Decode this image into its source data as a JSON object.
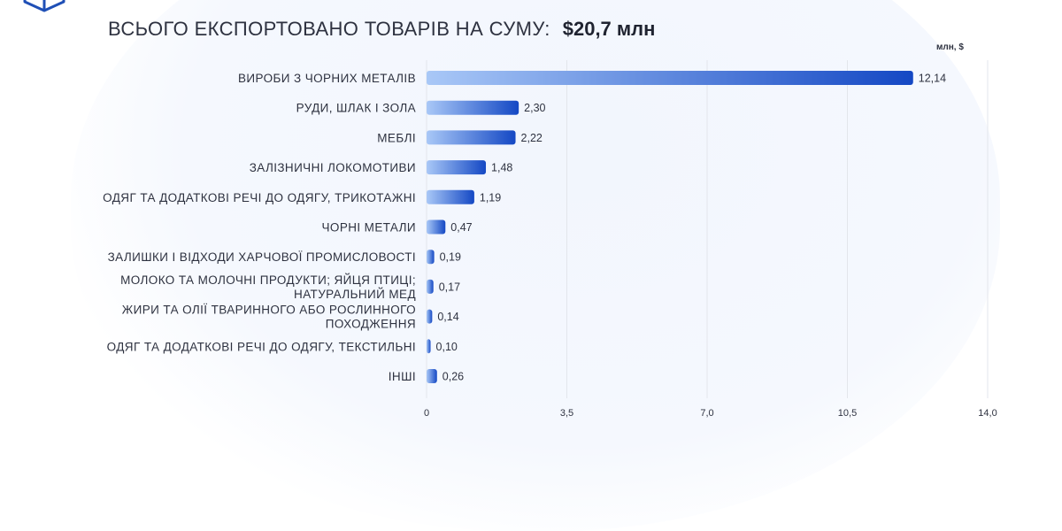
{
  "header": {
    "label": "ВСЬОГО ЕКСПОРТОВАНО ТОВАРІВ НА СУМУ:",
    "total": "$20,7 млн",
    "unit": "млн, $"
  },
  "logo_icon": "cube-outline-icon",
  "colors": {
    "bar_light": "#a9c8f7",
    "bar_dark": "#1448c4",
    "grid": "#e3e6ec",
    "text": "#2e3240"
  },
  "chart_data": {
    "type": "bar",
    "orientation": "horizontal",
    "categories": [
      [
        "ВИРОБИ З ЧОРНИХ МЕТАЛІВ"
      ],
      [
        "РУДИ, ШЛАК І ЗОЛА"
      ],
      [
        "МЕБЛІ"
      ],
      [
        "ЗАЛІЗНИЧНІ ЛОКОМОТИВИ"
      ],
      [
        "ОДЯГ ТА ДОДАТКОВІ РЕЧІ ДО ОДЯГУ, ТРИКОТАЖНІ"
      ],
      [
        "ЧОРНІ МЕТАЛИ"
      ],
      [
        "ЗАЛИШКИ І ВІДХОДИ ХАРЧОВОЇ ПРОМИСЛОВОСТІ"
      ],
      [
        "МОЛОКО ТА МОЛОЧНІ ПРОДУКТИ; ЯЙЦЯ ПТИЦІ;",
        "НАТУРАЛЬНИЙ МЕД"
      ],
      [
        "ЖИРИ ТА ОЛІЇ ТВАРИННОГО АБО РОСЛИННОГО",
        "ПОХОДЖЕННЯ"
      ],
      [
        "ОДЯГ ТА ДОДАТКОВІ РЕЧІ ДО ОДЯГУ, ТЕКСТИЛЬНІ"
      ],
      [
        "ІНШІ"
      ]
    ],
    "values": [
      12.14,
      2.3,
      2.22,
      1.48,
      1.19,
      0.47,
      0.19,
      0.17,
      0.14,
      0.1,
      0.26
    ],
    "value_labels": [
      "12,14",
      "2,30",
      "2,22",
      "1,48",
      "1,19",
      "0,47",
      "0,19",
      "0,17",
      "0,14",
      "0,10",
      "0,26"
    ],
    "xlim": [
      0,
      14
    ],
    "xticks": [
      0,
      3.5,
      7,
      10.5,
      14
    ],
    "xtick_labels": [
      "0",
      "3,5",
      "7,0",
      "10,5",
      "14,0"
    ],
    "grid": "vertical",
    "legend": "none"
  }
}
